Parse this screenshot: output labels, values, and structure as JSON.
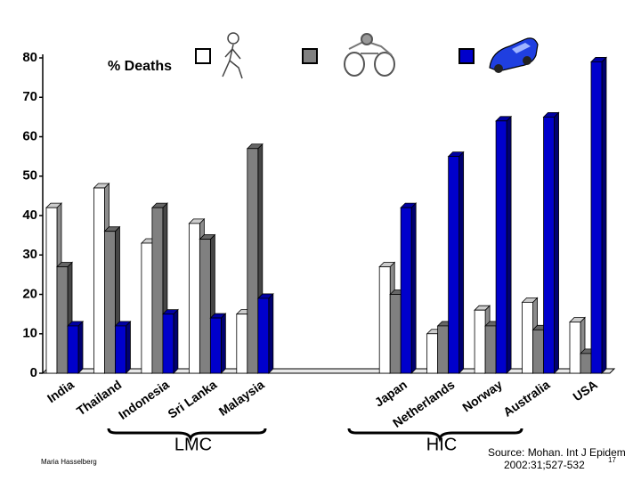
{
  "chart_data": {
    "type": "bar3d",
    "title": "% Deaths",
    "categories": [
      "India",
      "Thailand",
      "Indonesia",
      "Sri Lanka",
      "Malaysia",
      null,
      null,
      "Japan",
      "Netherlands",
      "Norway",
      "Australia",
      "USA"
    ],
    "series": [
      {
        "color": "#ffffff",
        "values": [
          42,
          47,
          33,
          38,
          15,
          null,
          null,
          27,
          10,
          16,
          18,
          13
        ]
      },
      {
        "color": "#808080",
        "values": [
          27,
          36,
          42,
          34,
          57,
          null,
          null,
          20,
          12,
          12,
          11,
          5
        ]
      },
      {
        "color": "#0000cc",
        "values": [
          12,
          12,
          15,
          14,
          19,
          null,
          null,
          42,
          55,
          64,
          65,
          79
        ]
      }
    ],
    "ylim": [
      0,
      80
    ],
    "yticks": [
      0,
      10,
      20,
      30,
      40,
      50,
      60,
      70,
      80
    ],
    "annotations": [
      "LMC",
      "HIC"
    ],
    "source": [
      "Source: Mohan. Int J Epidem",
      "2002:31;527-532"
    ],
    "author": "Maria Hasselberg",
    "page_number": "17"
  }
}
